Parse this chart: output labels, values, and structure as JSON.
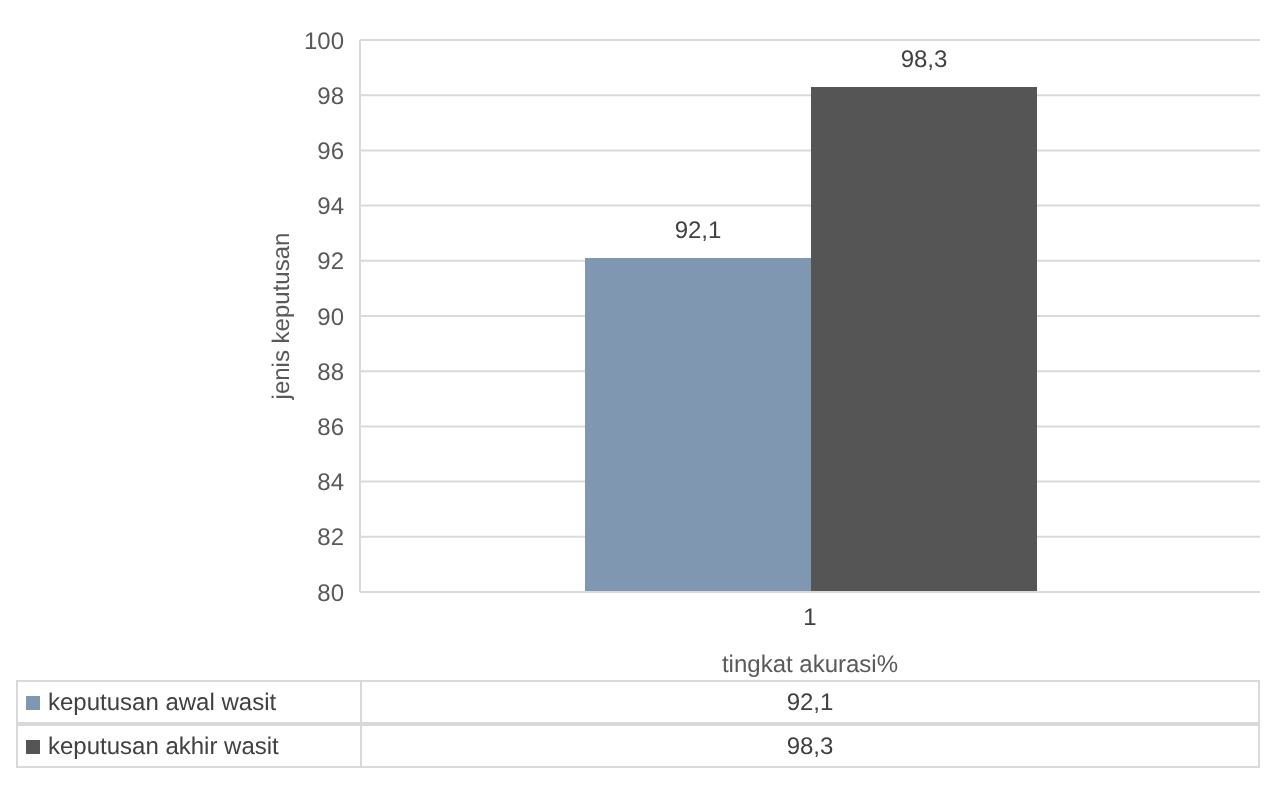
{
  "chart_data": {
    "type": "bar",
    "xlabel": "tingkat akurasi%",
    "ylabel": "jenis keputusan",
    "categories": [
      "1"
    ],
    "series": [
      {
        "name": "keputusan awal wasit",
        "color": "#8097b1",
        "values": [
          92.1
        ],
        "value_labels": [
          "92,1"
        ]
      },
      {
        "name": "keputusan akhir wasit",
        "color": "#555555",
        "values": [
          98.3
        ],
        "value_labels": [
          "98,3"
        ]
      }
    ],
    "ylim": [
      80,
      100
    ],
    "yticks": [
      80,
      82,
      84,
      86,
      88,
      90,
      92,
      94,
      96,
      98,
      100
    ],
    "grid": "y",
    "legend": "bottom"
  }
}
